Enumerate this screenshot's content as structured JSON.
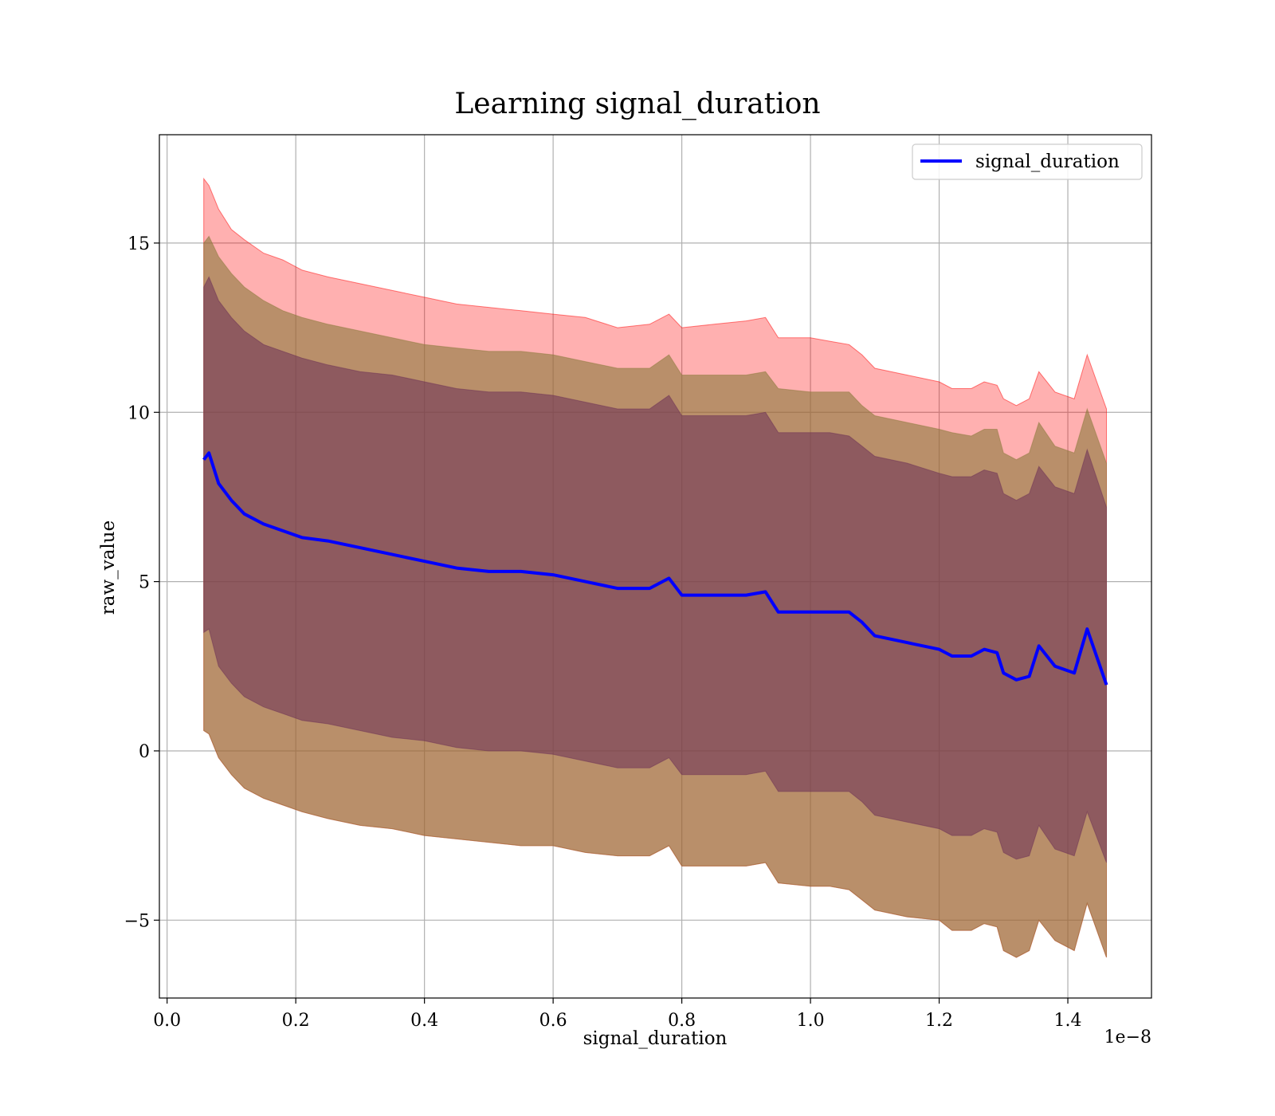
{
  "chart_data": {
    "type": "line",
    "title": "Learning signal_duration",
    "xlabel": "signal_duration",
    "ylabel": "raw_value",
    "x_offset_label": "1e−8",
    "xlim": [
      -0.012,
      1.53
    ],
    "ylim": [
      -7.3,
      18.2
    ],
    "x_ticks": [
      0.0,
      0.2,
      0.4,
      0.6,
      0.8,
      1.0,
      1.2,
      1.4
    ],
    "x_tick_labels": [
      "0.0",
      "0.2",
      "0.4",
      "0.6",
      "0.8",
      "1.0",
      "1.2",
      "1.4"
    ],
    "y_ticks": [
      -5,
      0,
      5,
      10,
      15
    ],
    "y_tick_labels": [
      "−5",
      "0",
      "5",
      "10",
      "15"
    ],
    "grid": true,
    "legend_position": "top-right",
    "x": [
      0.057,
      0.065,
      0.08,
      0.1,
      0.12,
      0.15,
      0.18,
      0.21,
      0.25,
      0.3,
      0.35,
      0.4,
      0.45,
      0.5,
      0.55,
      0.6,
      0.65,
      0.7,
      0.75,
      0.78,
      0.8,
      0.85,
      0.9,
      0.93,
      0.95,
      1.0,
      1.03,
      1.06,
      1.08,
      1.1,
      1.15,
      1.2,
      1.22,
      1.25,
      1.27,
      1.29,
      1.3,
      1.32,
      1.34,
      1.355,
      1.38,
      1.41,
      1.43,
      1.46
    ],
    "series": [
      {
        "name": "signal_duration",
        "color": "#0000ff",
        "values": [
          8.6,
          8.8,
          7.9,
          7.4,
          7.0,
          6.7,
          6.5,
          6.3,
          6.2,
          6.0,
          5.8,
          5.6,
          5.4,
          5.3,
          5.3,
          5.2,
          5.0,
          4.8,
          4.8,
          5.1,
          4.6,
          4.6,
          4.6,
          4.7,
          4.1,
          4.1,
          4.1,
          4.1,
          3.8,
          3.4,
          3.2,
          3.0,
          2.8,
          2.8,
          3.0,
          2.9,
          2.3,
          2.1,
          2.2,
          3.1,
          2.5,
          2.3,
          3.6,
          1.95
        ]
      }
    ],
    "bands": [
      {
        "color": "#ff0000",
        "opacity": 0.31,
        "upper": [
          16.9,
          16.7,
          16.0,
          15.4,
          15.1,
          14.7,
          14.5,
          14.2,
          14.0,
          13.8,
          13.6,
          13.4,
          13.2,
          13.1,
          13.0,
          12.9,
          12.8,
          12.5,
          12.6,
          12.9,
          12.5,
          12.6,
          12.7,
          12.8,
          12.2,
          12.2,
          12.1,
          12.0,
          11.7,
          11.3,
          11.1,
          10.9,
          10.7,
          10.7,
          10.9,
          10.8,
          10.4,
          10.2,
          10.4,
          11.2,
          10.6,
          10.4,
          11.7,
          10.1
        ],
        "lower": [
          0.6,
          0.5,
          -0.2,
          -0.7,
          -1.1,
          -1.4,
          -1.6,
          -1.8,
          -2.0,
          -2.2,
          -2.3,
          -2.5,
          -2.6,
          -2.7,
          -2.8,
          -2.8,
          -3.0,
          -3.1,
          -3.1,
          -2.8,
          -3.4,
          -3.4,
          -3.4,
          -3.3,
          -3.9,
          -4.0,
          -4.0,
          -4.1,
          -4.4,
          -4.7,
          -4.9,
          -5.0,
          -5.3,
          -5.3,
          -5.1,
          -5.2,
          -5.9,
          -6.1,
          -5.9,
          -5.0,
          -5.6,
          -5.9,
          -4.5,
          -6.1
        ]
      },
      {
        "color": "#8b7a3c",
        "opacity": 0.6,
        "upper": [
          15.0,
          15.2,
          14.6,
          14.1,
          13.7,
          13.3,
          13.0,
          12.8,
          12.6,
          12.4,
          12.2,
          12.0,
          11.9,
          11.8,
          11.8,
          11.7,
          11.5,
          11.3,
          11.3,
          11.7,
          11.1,
          11.1,
          11.1,
          11.2,
          10.7,
          10.6,
          10.6,
          10.6,
          10.2,
          9.9,
          9.7,
          9.5,
          9.4,
          9.3,
          9.5,
          9.5,
          8.8,
          8.6,
          8.8,
          9.7,
          9.0,
          8.8,
          10.1,
          8.5
        ]
      },
      {
        "color": "#6b2f55",
        "opacity": 0.55,
        "upper": [
          13.7,
          14.0,
          13.3,
          12.8,
          12.4,
          12.0,
          11.8,
          11.6,
          11.4,
          11.2,
          11.1,
          10.9,
          10.7,
          10.6,
          10.6,
          10.5,
          10.3,
          10.1,
          10.1,
          10.5,
          9.9,
          9.9,
          9.9,
          10.0,
          9.4,
          9.4,
          9.4,
          9.3,
          9.0,
          8.7,
          8.5,
          8.2,
          8.1,
          8.1,
          8.3,
          8.2,
          7.6,
          7.4,
          7.6,
          8.4,
          7.8,
          7.6,
          8.9,
          7.2
        ],
        "lower": [
          3.5,
          3.6,
          2.5,
          2.0,
          1.6,
          1.3,
          1.1,
          0.9,
          0.8,
          0.6,
          0.4,
          0.3,
          0.1,
          0.0,
          0.0,
          -0.1,
          -0.3,
          -0.5,
          -0.5,
          -0.2,
          -0.7,
          -0.7,
          -0.7,
          -0.6,
          -1.2,
          -1.2,
          -1.2,
          -1.2,
          -1.5,
          -1.9,
          -2.1,
          -2.3,
          -2.5,
          -2.5,
          -2.3,
          -2.4,
          -3.0,
          -3.2,
          -3.1,
          -2.2,
          -2.9,
          -3.1,
          -1.8,
          -3.3
        ]
      }
    ]
  }
}
